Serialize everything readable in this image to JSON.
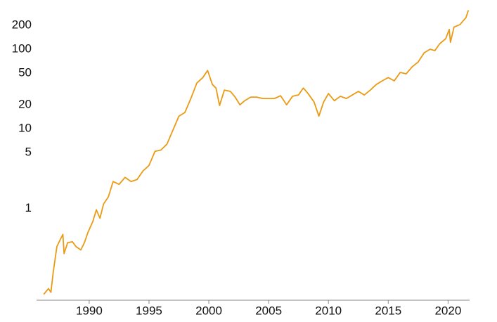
{
  "chart_data": {
    "type": "line",
    "log_y": true,
    "grid": false,
    "color": "#eb9a14",
    "xlim": [
      1985.6,
      2021.8
    ],
    "xticks": [
      1990,
      1995,
      2000,
      2005,
      2010,
      2015,
      2020
    ],
    "ylim": [
      0.07,
      375
    ],
    "yticks": [
      1,
      5,
      10,
      20,
      50,
      100,
      200
    ],
    "x": [
      1986.2,
      1986.6,
      1986.8,
      1987.0,
      1987.3,
      1987.6,
      1987.8,
      1987.9,
      1988.2,
      1988.6,
      1988.9,
      1989.3,
      1989.6,
      1989.9,
      1990.3,
      1990.6,
      1990.9,
      1991.2,
      1991.6,
      1992.0,
      1992.5,
      1993.0,
      1993.5,
      1994.0,
      1994.5,
      1995.0,
      1995.5,
      1996.0,
      1996.5,
      1997.0,
      1997.5,
      1998.0,
      1998.5,
      1999.0,
      1999.5,
      1999.9,
      2000.3,
      2000.6,
      2000.9,
      2001.3,
      2001.8,
      2002.2,
      2002.6,
      2003.0,
      2003.5,
      2004.0,
      2004.5,
      2005.0,
      2005.5,
      2006.0,
      2006.5,
      2007.0,
      2007.5,
      2007.9,
      2008.3,
      2008.8,
      2009.2,
      2009.6,
      2010.0,
      2010.5,
      2011.0,
      2011.5,
      2012.0,
      2012.5,
      2013.0,
      2013.5,
      2014.0,
      2014.5,
      2015.0,
      2015.5,
      2016.0,
      2016.5,
      2017.0,
      2017.5,
      2018.0,
      2018.5,
      2018.9,
      2019.3,
      2019.8,
      2020.1,
      2020.2,
      2020.5,
      2021.0,
      2021.5,
      2021.7
    ],
    "values": [
      0.083,
      0.098,
      0.088,
      0.16,
      0.33,
      0.41,
      0.47,
      0.27,
      0.37,
      0.38,
      0.33,
      0.3,
      0.37,
      0.5,
      0.68,
      0.96,
      0.75,
      1.13,
      1.39,
      2.17,
      2.0,
      2.45,
      2.17,
      2.3,
      2.95,
      3.46,
      5.2,
      5.4,
      6.4,
      9.6,
      14.4,
      16,
      24,
      37.6,
      44,
      54,
      36,
      32.5,
      19.6,
      30.6,
      29.5,
      25,
      20,
      22.5,
      25,
      25,
      24,
      24,
      24,
      26,
      20,
      25.6,
      26.6,
      32.5,
      27.7,
      21.7,
      14.4,
      21.7,
      27.7,
      22.5,
      25.6,
      24,
      26.6,
      29.5,
      26.6,
      30.6,
      36,
      40,
      44,
      40,
      51,
      49,
      60,
      69,
      90,
      100,
      96,
      117,
      135,
      177,
      122,
      190,
      204,
      250,
      309
    ]
  }
}
